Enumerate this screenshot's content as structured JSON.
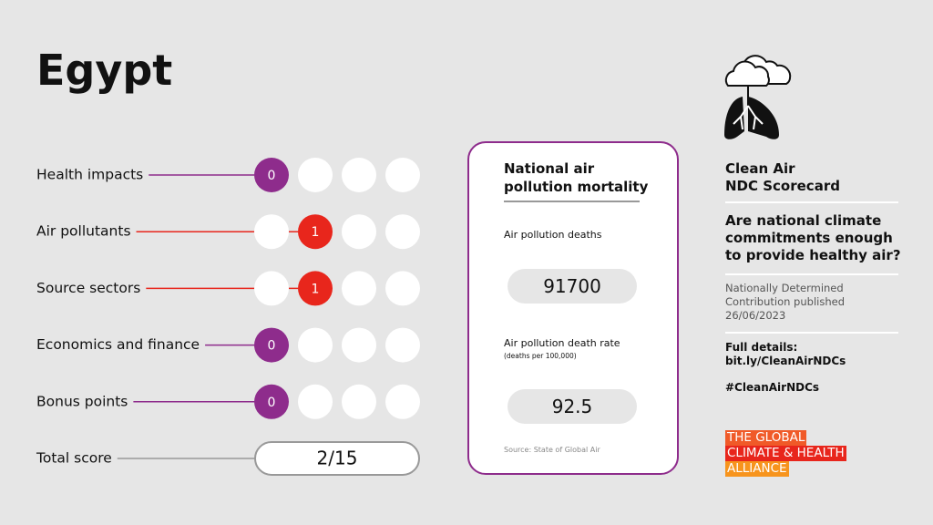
{
  "header": {
    "title": "Egypt"
  },
  "scores": [
    {
      "label": "Health impacts",
      "score": 0,
      "color": "#8e2c8c"
    },
    {
      "label": "Air pollutants",
      "score": 1,
      "color": "#e8261c"
    },
    {
      "label": "Source sectors",
      "score": 1,
      "color": "#e8261c"
    },
    {
      "label": "Economics and finance",
      "score": 0,
      "color": "#8e2c8c"
    },
    {
      "label": "Bonus points",
      "score": 0,
      "color": "#8e2c8c"
    }
  ],
  "total": {
    "label": "Total score",
    "value": "2/15"
  },
  "mortality": {
    "title": [
      "National air",
      "pollution mortality"
    ],
    "deaths_label": "Air pollution deaths",
    "deaths": 91700,
    "rate_label": "Air pollution death rate",
    "rate_unit": "(deaths per 100,000)",
    "rate": 92.5,
    "source": "Source: State of Global Air"
  },
  "sidebar": {
    "title": [
      "Clean Air",
      "NDC Scorecard"
    ],
    "question": [
      "Are national climate",
      "commitments enough",
      "to provide healthy air?"
    ],
    "ndc": [
      "Nationally Determined",
      "Contribution published",
      "26/06/2023"
    ],
    "details": [
      "Full details:",
      "bit.ly/CleanAirNDCs"
    ],
    "hashtag": "#CleanAirNDCs",
    "logo": [
      "THE GLOBAL",
      "CLIMATE & HEALTH",
      "ALLIANCE"
    ]
  }
}
